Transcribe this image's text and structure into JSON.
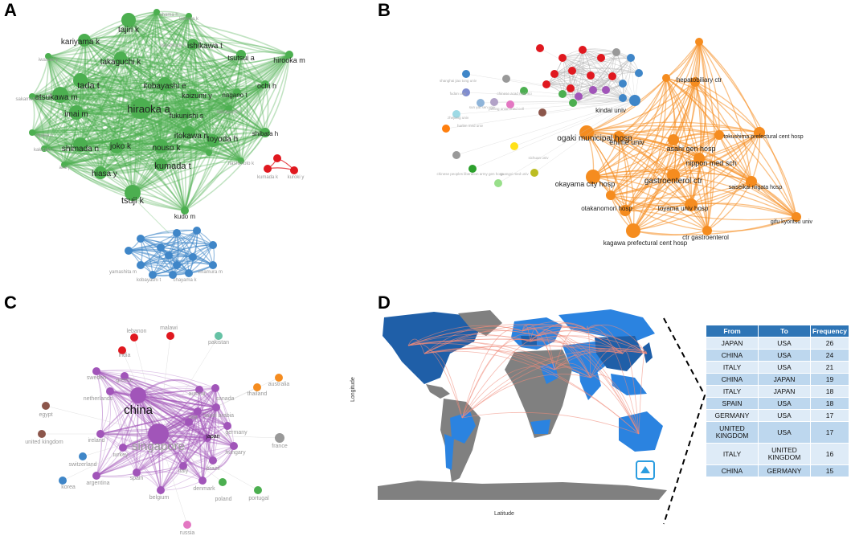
{
  "panels": {
    "a": "A",
    "b": "B",
    "c": "C",
    "d": "D"
  },
  "colors": {
    "green": "#4caf50",
    "red": "#e0181f",
    "blue": "#3f86c8",
    "orange": "#f58c1f",
    "purple": "#a155b9",
    "map_dark": "#1f5fa8",
    "map_light": "#2b83e0",
    "map_gray": "#808080",
    "table_header": "#2e75b6"
  },
  "panel_a": {
    "green_labels": [
      "tajiri k",
      "kariyama k",
      "ishikawa t",
      "tsutsui a",
      "hirooka m",
      "takaguchi k",
      "ochi h",
      "tada t",
      "itobayashi e",
      "atsukawa m",
      "koizumi y",
      "nagano t",
      "imai m",
      "hiraoka a",
      "fukunishi s",
      "itokawa n",
      "toyoda h",
      "shibata h",
      "shimada n",
      "joko k",
      "nouso k",
      "kumada t",
      "hiasa y",
      "tsuji k",
      "kudo m"
    ],
    "faint_labels": [
      "ohama h",
      "nakamura s",
      "kawata k",
      "iwasaki y",
      "sakamoto h",
      "ogawa c",
      "kakizaki s",
      "arai j",
      "hashimoto k",
      "sakaguchi r"
    ],
    "red_labels": [
      "kumada k",
      "kuroki y"
    ],
    "blue_labels": [
      "yamashita m",
      "kobayashi t",
      "chayama k",
      "imamura m"
    ]
  },
  "panel_b": {
    "orange_labels": [
      "hepatobiliary ctr",
      "ogaki municipal hosp",
      "ehime univ",
      "asahi gen hosp",
      "tokushima prefectural cent hosp",
      "nippon med sch",
      "okayama city hosp",
      "gastroenterol ctr",
      "saiseikai niigata hosp",
      "otakanomori hosp",
      "toyama univ hosp",
      "gifu kyoritsu univ",
      "ctr gastroenterol",
      "kagawa prefectural cent hosp"
    ],
    "blue_labels": [
      "kindai univ"
    ],
    "faint_labels": [
      "shanghai jiao tong univ",
      "fudan univ",
      "sun yat sen univ",
      "chinese acad med sci",
      "peking union med coll",
      "harbin med univ",
      "zhejiang univ",
      "sichuan univ",
      "chinese peoples liberation army gen hosp",
      "guangxi med univ"
    ]
  },
  "panel_c": {
    "labels": [
      "lebanon",
      "malawi",
      "india",
      "pakistan",
      "greece",
      "sweden",
      "thailand",
      "australia",
      "china",
      "austria",
      "canada",
      "netherlands",
      "egypt",
      "saudi arabia",
      "usa",
      "germany",
      "united kingdom",
      "ireland",
      "singapore",
      "japan",
      "france",
      "hungary",
      "turkey",
      "switzerland",
      "brazil",
      "italy",
      "spain",
      "korea",
      "argentina",
      "denmark",
      "poland",
      "portugal",
      "belgium",
      "russia",
      "indonesia"
    ]
  },
  "panel_d": {
    "xlabel": "Latitude",
    "ylabel": "Longitude",
    "table": {
      "headers": [
        "From",
        "To",
        "Frequency"
      ],
      "rows": [
        [
          "JAPAN",
          "USA",
          "26"
        ],
        [
          "CHINA",
          "USA",
          "24"
        ],
        [
          "ITALY",
          "USA",
          "21"
        ],
        [
          "CHINA",
          "JAPAN",
          "19"
        ],
        [
          "ITALY",
          "JAPAN",
          "18"
        ],
        [
          "SPAIN",
          "USA",
          "18"
        ],
        [
          "GERMANY",
          "USA",
          "17"
        ],
        [
          "UNITED KINGDOM",
          "USA",
          "17"
        ],
        [
          "ITALY",
          "UNITED KINGDOM",
          "16"
        ],
        [
          "CHINA",
          "GERMANY",
          "15"
        ]
      ]
    }
  }
}
